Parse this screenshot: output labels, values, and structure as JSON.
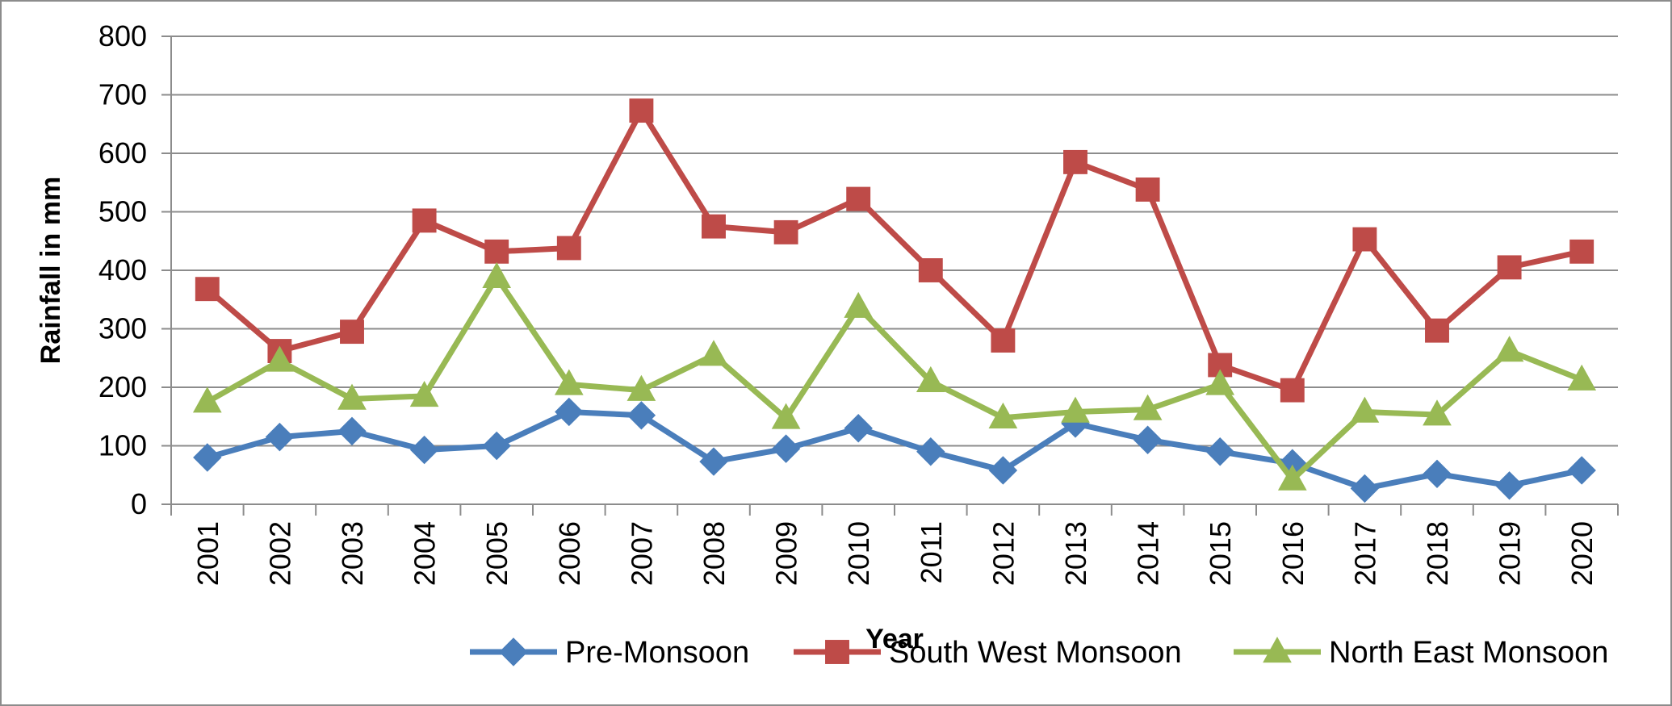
{
  "chart_data": {
    "type": "line",
    "title": "",
    "xlabel": "Year",
    "ylabel": "Rainfall in mm",
    "ylim": [
      0,
      800
    ],
    "yticks": [
      "0",
      "100",
      "200",
      "300",
      "400",
      "500",
      "600",
      "700",
      "800"
    ],
    "grid": true,
    "legend_position": "bottom",
    "categories": [
      "2001",
      "2002",
      "2003",
      "2004",
      "2005",
      "2006",
      "2007",
      "2008",
      "2009",
      "2010",
      "2011",
      "2012",
      "2013",
      "2014",
      "2015",
      "2016",
      "2017",
      "2018",
      "2019",
      "2020"
    ],
    "series": [
      {
        "name": "Pre-Monsoon",
        "color": "#4a7ebb",
        "marker": "diamond",
        "values": [
          80,
          115,
          125,
          93,
          100,
          158,
          152,
          73,
          95,
          130,
          90,
          58,
          138,
          110,
          90,
          70,
          27,
          52,
          32,
          58
        ]
      },
      {
        "name": "South West Monsoon",
        "color": "#be4b48",
        "marker": "square",
        "values": [
          368,
          262,
          295,
          485,
          432,
          438,
          673,
          475,
          465,
          522,
          400,
          280,
          585,
          538,
          238,
          195,
          453,
          297,
          405,
          432
        ]
      },
      {
        "name": "North East Monsoon",
        "color": "#98b954",
        "marker": "triangle",
        "values": [
          175,
          245,
          180,
          185,
          388,
          205,
          195,
          255,
          147,
          337,
          210,
          148,
          158,
          162,
          205,
          42,
          158,
          153,
          262,
          213
        ]
      }
    ]
  }
}
